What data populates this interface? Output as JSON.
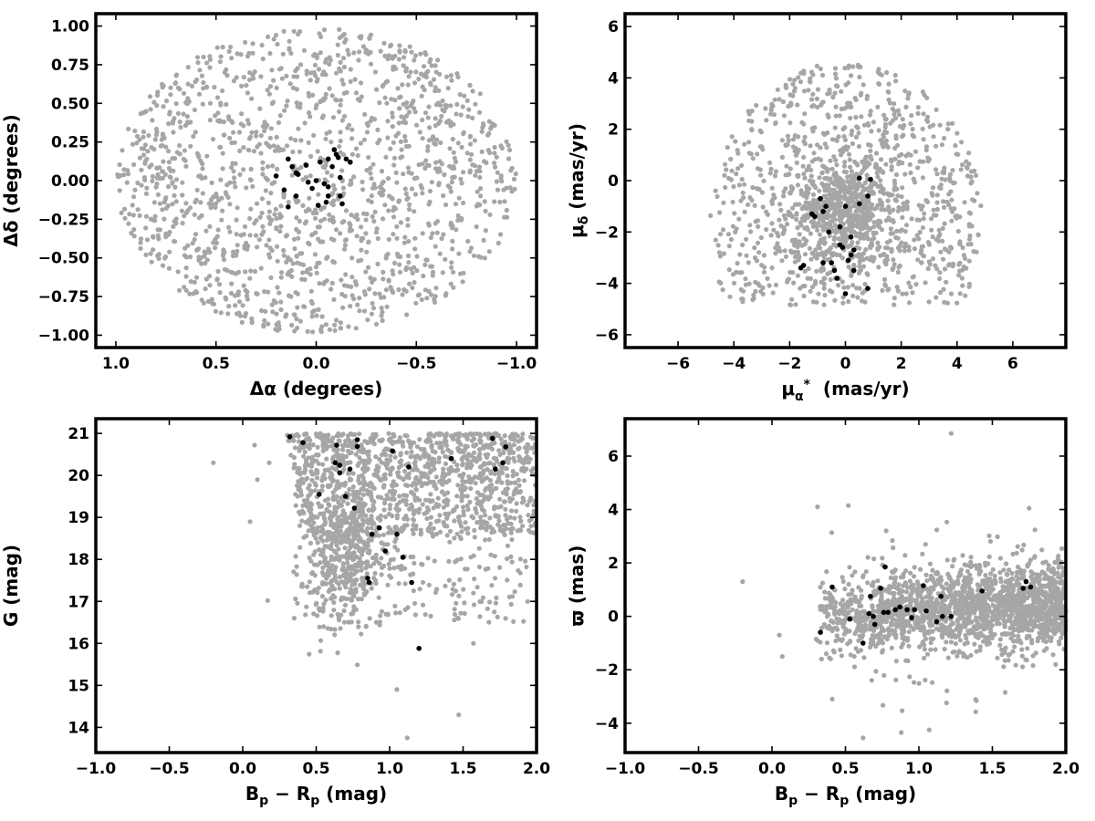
{
  "figure": {
    "colors": {
      "field_stars": "#a6a6a6",
      "members": "#000000",
      "axes": "#000000",
      "background": "#ffffff"
    }
  },
  "chart_data": [
    {
      "type": "scatter",
      "title": "",
      "xlabel": "Δα (degrees)",
      "ylabel": "Δδ (degrees)",
      "xlim": [
        1.1,
        -1.1
      ],
      "ylim": [
        -1.08,
        1.08
      ],
      "x_inverted": true,
      "xticks": [
        1.0,
        0.5,
        0.0,
        -0.5,
        -1.0
      ],
      "xtick_labels": [
        "1.0",
        "0.5",
        "0.0",
        "−0.5",
        "−1.0"
      ],
      "yticks": [
        1.0,
        0.75,
        0.5,
        0.25,
        0.0,
        -0.25,
        -0.5,
        -0.75,
        -1.0
      ],
      "ytick_labels": [
        "1.00",
        "0.75",
        "0.50",
        "0.25",
        "0.00",
        "−0.25",
        "−0.50",
        "−0.75",
        "−1.00"
      ],
      "grid": false,
      "field_distribution": {
        "shape": "disk",
        "center": [
          0.0,
          0.0
        ],
        "rx": 1.0,
        "ry": 0.99,
        "count": 1500
      },
      "member_points": [
        [
          0.2,
          0.03
        ],
        [
          0.16,
          -0.06
        ],
        [
          0.14,
          -0.17
        ],
        [
          0.14,
          0.14
        ],
        [
          0.12,
          0.09
        ],
        [
          0.1,
          -0.1
        ],
        [
          0.1,
          0.05
        ],
        [
          0.05,
          0.1
        ],
        [
          0.04,
          -0.01
        ],
        [
          0.02,
          -0.05
        ],
        [
          0.0,
          0.0
        ],
        [
          -0.01,
          -0.16
        ],
        [
          -0.04,
          -0.02
        ],
        [
          -0.06,
          0.14
        ],
        [
          -0.06,
          -0.1
        ],
        [
          -0.08,
          0.09
        ],
        [
          -0.09,
          0.2
        ],
        [
          -0.1,
          0.17
        ],
        [
          -0.11,
          0.15
        ],
        [
          -0.12,
          -0.1
        ],
        [
          -0.12,
          0.02
        ],
        [
          -0.13,
          -0.15
        ],
        [
          -0.15,
          0.14
        ],
        [
          -0.17,
          0.12
        ],
        [
          -0.05,
          -0.14
        ],
        [
          -0.02,
          0.12
        ],
        [
          0.09,
          0.04
        ],
        [
          -0.06,
          -0.04
        ]
      ]
    },
    {
      "type": "scatter",
      "title": "",
      "xlabel": "μα* (mas/yr)",
      "ylabel": "μδ (mas/yr)",
      "xlim": [
        -7.9,
        7.9
      ],
      "ylim": [
        -6.5,
        6.5
      ],
      "xticks": [
        -6,
        -4,
        -2,
        0,
        2,
        4,
        6
      ],
      "xtick_labels": [
        "−6",
        "−4",
        "−2",
        "0",
        "2",
        "4",
        "6"
      ],
      "yticks": [
        -6,
        -4,
        -2,
        0,
        2,
        4,
        6
      ],
      "ytick_labels": [
        "−6",
        "−4",
        "−2",
        "0",
        "2",
        "4",
        "6"
      ],
      "grid": false,
      "field_distribution": {
        "shape": "disk_clipped",
        "center": [
          0.0,
          -1.6
        ],
        "rx": 4.9,
        "ry": 6.2,
        "ymin": -4.9,
        "core": [
          0.0,
          -1.2
        ],
        "count": 1500
      },
      "member_points": [
        [
          -0.9,
          -0.7
        ],
        [
          -0.8,
          -1.2
        ],
        [
          -0.7,
          -1.0
        ],
        [
          -0.6,
          -2.0
        ],
        [
          -0.5,
          -3.2
        ],
        [
          -0.4,
          -3.5
        ],
        [
          -0.3,
          -3.8
        ],
        [
          -0.2,
          -1.8
        ],
        [
          -0.1,
          -2.6
        ],
        [
          0.0,
          -1.0
        ],
        [
          0.0,
          -4.4
        ],
        [
          0.1,
          -3.1
        ],
        [
          0.2,
          -2.2
        ],
        [
          0.2,
          -2.9
        ],
        [
          0.3,
          -2.7
        ],
        [
          0.3,
          -3.5
        ],
        [
          0.5,
          -0.9
        ],
        [
          0.8,
          -0.6
        ],
        [
          0.8,
          -4.2
        ],
        [
          0.9,
          0.05
        ],
        [
          0.5,
          0.1
        ],
        [
          -1.2,
          -1.3
        ],
        [
          -1.5,
          -3.3
        ],
        [
          -1.6,
          -3.4
        ],
        [
          -0.8,
          -3.2
        ],
        [
          -0.2,
          -2.5
        ],
        [
          -1.1,
          -1.4
        ]
      ]
    },
    {
      "type": "scatter",
      "title": "",
      "xlabel": "Bp − Rp (mag)",
      "ylabel": "G (mag)",
      "xlim": [
        -1.0,
        2.0
      ],
      "ylim": [
        13.4,
        21.35
      ],
      "xticks": [
        -1.0,
        -0.5,
        0.0,
        0.5,
        1.0,
        1.5,
        2.0
      ],
      "xtick_labels": [
        "−1.0",
        "−0.5",
        "0.0",
        "0.5",
        "1.0",
        "1.5",
        "2.0"
      ],
      "yticks": [
        14,
        15,
        16,
        17,
        18,
        19,
        20,
        21
      ],
      "ytick_labels": [
        "14",
        "15",
        "16",
        "17",
        "18",
        "19",
        "20",
        "21"
      ],
      "grid": false,
      "field_distribution": {
        "shape": "cmd_wedge",
        "x_range": [
          0.25,
          2.0
        ],
        "y_range": [
          14.0,
          21.0
        ],
        "count": 1800
      },
      "member_points": [
        [
          0.32,
          20.92
        ],
        [
          0.41,
          20.78
        ],
        [
          0.52,
          19.55
        ],
        [
          0.63,
          20.3
        ],
        [
          0.64,
          20.72
        ],
        [
          0.66,
          20.06
        ],
        [
          0.66,
          20.24
        ],
        [
          0.7,
          19.5
        ],
        [
          0.73,
          20.15
        ],
        [
          0.76,
          19.22
        ],
        [
          0.78,
          20.85
        ],
        [
          0.78,
          20.69
        ],
        [
          0.85,
          17.55
        ],
        [
          0.86,
          17.45
        ],
        [
          0.88,
          18.6
        ],
        [
          0.93,
          18.75
        ],
        [
          0.97,
          18.2
        ],
        [
          1.02,
          20.58
        ],
        [
          1.05,
          18.6
        ],
        [
          1.09,
          18.05
        ],
        [
          1.13,
          20.2
        ],
        [
          1.15,
          17.45
        ],
        [
          1.2,
          15.88
        ],
        [
          1.42,
          20.4
        ],
        [
          1.7,
          20.88
        ],
        [
          1.72,
          20.15
        ],
        [
          1.77,
          20.3
        ],
        [
          1.79,
          20.68
        ]
      ]
    },
    {
      "type": "scatter",
      "title": "",
      "xlabel": "Bp − Rp (mag)",
      "ylabel": "ϖ (mas)",
      "xlim": [
        -1.0,
        2.0
      ],
      "ylim": [
        -5.1,
        7.4
      ],
      "xticks": [
        -1.0,
        -0.5,
        0.0,
        0.5,
        1.0,
        1.5,
        2.0
      ],
      "xtick_labels": [
        "−1.0",
        "−0.5",
        "0.0",
        "0.5",
        "1.0",
        "1.5",
        "2.0"
      ],
      "yticks": [
        -4,
        -2,
        0,
        2,
        4,
        6
      ],
      "ytick_labels": [
        "−4",
        "−2",
        "0",
        "2",
        "4",
        "6"
      ],
      "grid": false,
      "field_distribution": {
        "shape": "band",
        "x_range": [
          0.3,
          2.0
        ],
        "y_center": [
          0.0,
          0.5
        ],
        "y_spread": 0.75,
        "count": 1800
      },
      "member_points": [
        [
          0.33,
          -0.6
        ],
        [
          0.41,
          1.1
        ],
        [
          0.53,
          -0.1
        ],
        [
          0.62,
          -1.0
        ],
        [
          0.66,
          0.1
        ],
        [
          0.67,
          0.75
        ],
        [
          0.69,
          0.0
        ],
        [
          0.7,
          -0.3
        ],
        [
          0.74,
          1.05
        ],
        [
          0.76,
          0.15
        ],
        [
          0.77,
          1.85
        ],
        [
          0.79,
          0.15
        ],
        [
          0.84,
          0.25
        ],
        [
          0.87,
          0.35
        ],
        [
          0.92,
          0.25
        ],
        [
          0.97,
          0.25
        ],
        [
          1.03,
          1.15
        ],
        [
          1.05,
          0.2
        ],
        [
          1.12,
          -0.2
        ],
        [
          1.15,
          0.75
        ],
        [
          1.16,
          0.0
        ],
        [
          1.22,
          0.0
        ],
        [
          1.43,
          0.95
        ],
        [
          1.71,
          1.05
        ],
        [
          1.73,
          1.3
        ],
        [
          1.76,
          1.1
        ],
        [
          0.95,
          -0.05
        ]
      ]
    }
  ]
}
